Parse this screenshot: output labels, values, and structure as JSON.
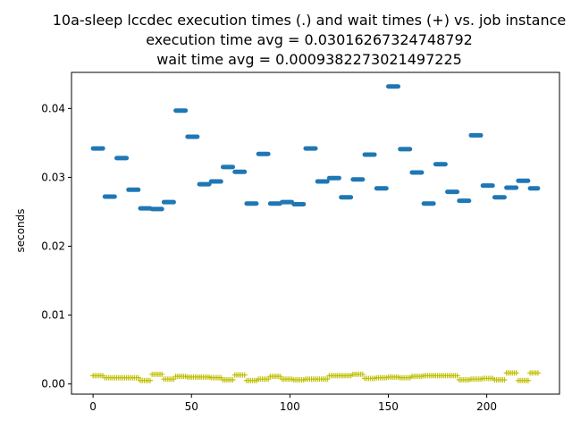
{
  "chart_data": {
    "type": "scatter",
    "title": [
      "10a-sleep lccdec execution times (.) and wait times (+) vs. job instance",
      "execution time avg = 0.03016267324748792",
      "wait time avg = 0.0009382273021497225"
    ],
    "xlabel": "",
    "ylabel": "seconds",
    "xlim": [
      -10.95,
      236.95
    ],
    "ylim": [
      -0.00148,
      0.04524
    ],
    "xticks": [
      0,
      50,
      100,
      150,
      200
    ],
    "xtick_labels": [
      "0",
      "50",
      "100",
      "150",
      "200"
    ],
    "yticks": [
      0.0,
      0.01,
      0.02,
      0.03,
      0.04
    ],
    "ytick_labels": [
      "0.00",
      "0.01",
      "0.02",
      "0.03",
      "0.04"
    ],
    "grid": false,
    "series": [
      {
        "marker": ".",
        "color": "#1f77b4",
        "segments": [
          {
            "x0": 0,
            "x1": 5,
            "y": 0.0342
          },
          {
            "x0": 6,
            "x1": 11,
            "y": 0.0272
          },
          {
            "x0": 12,
            "x1": 17,
            "y": 0.0328
          },
          {
            "x0": 18,
            "x1": 23,
            "y": 0.0282
          },
          {
            "x0": 24,
            "x1": 29,
            "y": 0.0255
          },
          {
            "x0": 30,
            "x1": 35,
            "y": 0.0254
          },
          {
            "x0": 36,
            "x1": 41,
            "y": 0.0264
          },
          {
            "x0": 42,
            "x1": 47,
            "y": 0.0397
          },
          {
            "x0": 48,
            "x1": 53,
            "y": 0.0359
          },
          {
            "x0": 54,
            "x1": 59,
            "y": 0.029
          },
          {
            "x0": 60,
            "x1": 65,
            "y": 0.0294
          },
          {
            "x0": 66,
            "x1": 71,
            "y": 0.0315
          },
          {
            "x0": 72,
            "x1": 77,
            "y": 0.0308
          },
          {
            "x0": 78,
            "x1": 83,
            "y": 0.0262
          },
          {
            "x0": 84,
            "x1": 89,
            "y": 0.0334
          },
          {
            "x0": 90,
            "x1": 95,
            "y": 0.0262
          },
          {
            "x0": 96,
            "x1": 101,
            "y": 0.0264
          },
          {
            "x0": 102,
            "x1": 107,
            "y": 0.0261
          },
          {
            "x0": 108,
            "x1": 113,
            "y": 0.0342
          },
          {
            "x0": 114,
            "x1": 119,
            "y": 0.0294
          },
          {
            "x0": 120,
            "x1": 125,
            "y": 0.0299
          },
          {
            "x0": 126,
            "x1": 131,
            "y": 0.0271
          },
          {
            "x0": 132,
            "x1": 137,
            "y": 0.0297
          },
          {
            "x0": 138,
            "x1": 143,
            "y": 0.0333
          },
          {
            "x0": 144,
            "x1": 149,
            "y": 0.0284
          },
          {
            "x0": 150,
            "x1": 155,
            "y": 0.0432
          },
          {
            "x0": 156,
            "x1": 161,
            "y": 0.0341
          },
          {
            "x0": 162,
            "x1": 167,
            "y": 0.0307
          },
          {
            "x0": 168,
            "x1": 173,
            "y": 0.0262
          },
          {
            "x0": 174,
            "x1": 179,
            "y": 0.0319
          },
          {
            "x0": 180,
            "x1": 185,
            "y": 0.0279
          },
          {
            "x0": 186,
            "x1": 191,
            "y": 0.0266
          },
          {
            "x0": 192,
            "x1": 197,
            "y": 0.0361
          },
          {
            "x0": 198,
            "x1": 203,
            "y": 0.0288
          },
          {
            "x0": 204,
            "x1": 209,
            "y": 0.0271
          },
          {
            "x0": 210,
            "x1": 215,
            "y": 0.0285
          },
          {
            "x0": 216,
            "x1": 221,
            "y": 0.0295
          },
          {
            "x0": 222,
            "x1": 226,
            "y": 0.0284
          }
        ]
      },
      {
        "marker": "+",
        "color": "#bfbf00",
        "segments": [
          {
            "x0": 0,
            "x1": 5,
            "y": 0.0012
          },
          {
            "x0": 6,
            "x1": 11,
            "y": 0.0009
          },
          {
            "x0": 12,
            "x1": 17,
            "y": 0.0009
          },
          {
            "x0": 18,
            "x1": 23,
            "y": 0.0009
          },
          {
            "x0": 24,
            "x1": 29,
            "y": 0.0005
          },
          {
            "x0": 30,
            "x1": 35,
            "y": 0.0014
          },
          {
            "x0": 36,
            "x1": 41,
            "y": 0.0007
          },
          {
            "x0": 42,
            "x1": 47,
            "y": 0.0011
          },
          {
            "x0": 48,
            "x1": 53,
            "y": 0.001
          },
          {
            "x0": 54,
            "x1": 59,
            "y": 0.001
          },
          {
            "x0": 60,
            "x1": 65,
            "y": 0.0009
          },
          {
            "x0": 66,
            "x1": 71,
            "y": 0.0006
          },
          {
            "x0": 72,
            "x1": 77,
            "y": 0.0013
          },
          {
            "x0": 78,
            "x1": 83,
            "y": 0.0005
          },
          {
            "x0": 84,
            "x1": 89,
            "y": 0.0007
          },
          {
            "x0": 90,
            "x1": 95,
            "y": 0.0011
          },
          {
            "x0": 96,
            "x1": 101,
            "y": 0.0007
          },
          {
            "x0": 102,
            "x1": 107,
            "y": 0.0006
          },
          {
            "x0": 108,
            "x1": 113,
            "y": 0.0007
          },
          {
            "x0": 114,
            "x1": 119,
            "y": 0.0007
          },
          {
            "x0": 120,
            "x1": 125,
            "y": 0.0012
          },
          {
            "x0": 126,
            "x1": 131,
            "y": 0.0012
          },
          {
            "x0": 132,
            "x1": 137,
            "y": 0.0014
          },
          {
            "x0": 138,
            "x1": 143,
            "y": 0.0008
          },
          {
            "x0": 144,
            "x1": 149,
            "y": 0.0009
          },
          {
            "x0": 150,
            "x1": 155,
            "y": 0.001
          },
          {
            "x0": 156,
            "x1": 161,
            "y": 0.0009
          },
          {
            "x0": 162,
            "x1": 167,
            "y": 0.0011
          },
          {
            "x0": 168,
            "x1": 173,
            "y": 0.0012
          },
          {
            "x0": 174,
            "x1": 179,
            "y": 0.0012
          },
          {
            "x0": 180,
            "x1": 185,
            "y": 0.0012
          },
          {
            "x0": 186,
            "x1": 191,
            "y": 0.0006
          },
          {
            "x0": 192,
            "x1": 197,
            "y": 0.0007
          },
          {
            "x0": 198,
            "x1": 203,
            "y": 0.0008
          },
          {
            "x0": 204,
            "x1": 209,
            "y": 0.0006
          },
          {
            "x0": 210,
            "x1": 215,
            "y": 0.0016
          },
          {
            "x0": 216,
            "x1": 221,
            "y": 0.0005
          },
          {
            "x0": 222,
            "x1": 226,
            "y": 0.0016
          }
        ]
      }
    ]
  }
}
